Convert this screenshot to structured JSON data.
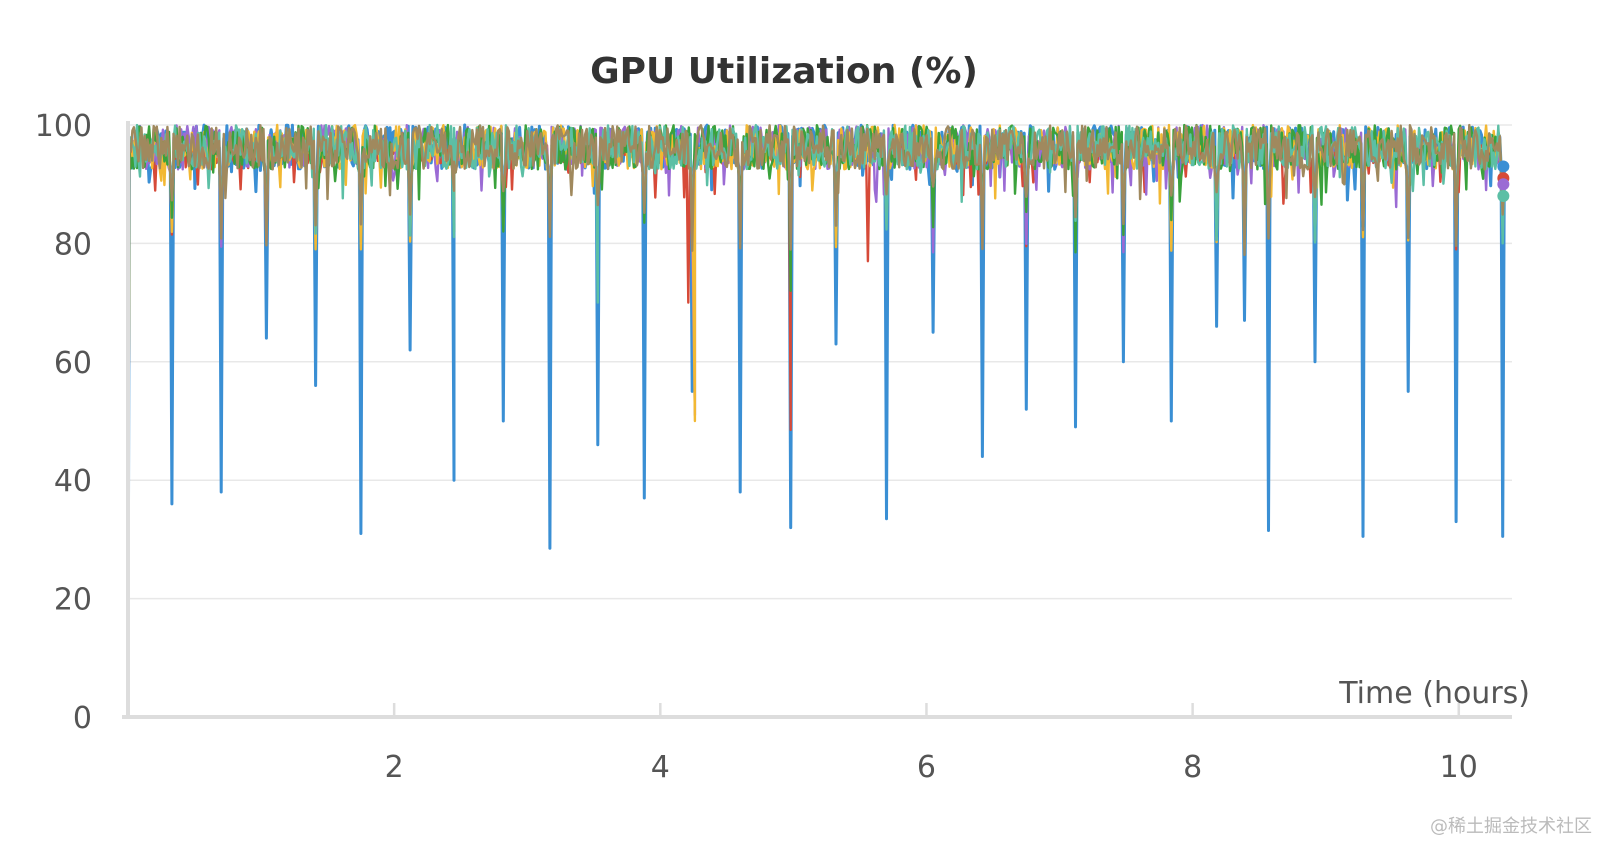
{
  "chart_data": {
    "type": "line",
    "title": "GPU Utilization (%)",
    "xlabel": "Time (hours)",
    "ylabel": "",
    "xlim": [
      0,
      10.4
    ],
    "ylim": [
      0,
      100
    ],
    "x_ticks": [
      "2",
      "4",
      "6",
      "8",
      "10"
    ],
    "y_ticks": [
      "0",
      "20",
      "40",
      "60",
      "80",
      "100"
    ],
    "grid": true,
    "baseline_band": [
      92,
      100
    ],
    "series": [
      {
        "color": "#3a8fd4",
        "dips": [
          {
            "x": 0.33,
            "y": 36
          },
          {
            "x": 0.7,
            "y": 38
          },
          {
            "x": 1.04,
            "y": 64
          },
          {
            "x": 1.41,
            "y": 56
          },
          {
            "x": 1.75,
            "y": 31
          },
          {
            "x": 2.12,
            "y": 62
          },
          {
            "x": 2.45,
            "y": 40
          },
          {
            "x": 2.82,
            "y": 50
          },
          {
            "x": 3.17,
            "y": 28.5
          },
          {
            "x": 3.53,
            "y": 46
          },
          {
            "x": 3.88,
            "y": 37
          },
          {
            "x": 4.24,
            "y": 55
          },
          {
            "x": 4.6,
            "y": 38
          },
          {
            "x": 4.98,
            "y": 32
          },
          {
            "x": 5.32,
            "y": 63
          },
          {
            "x": 5.7,
            "y": 33.5
          },
          {
            "x": 6.05,
            "y": 65
          },
          {
            "x": 6.42,
            "y": 44
          },
          {
            "x": 6.75,
            "y": 52
          },
          {
            "x": 7.12,
            "y": 49
          },
          {
            "x": 7.48,
            "y": 60
          },
          {
            "x": 7.84,
            "y": 50
          },
          {
            "x": 8.18,
            "y": 66
          },
          {
            "x": 8.39,
            "y": 67
          },
          {
            "x": 8.57,
            "y": 31.5
          },
          {
            "x": 8.92,
            "y": 60
          },
          {
            "x": 9.28,
            "y": 30.5
          },
          {
            "x": 9.62,
            "y": 55
          },
          {
            "x": 9.98,
            "y": 33
          },
          {
            "x": 10.33,
            "y": 30.5
          }
        ]
      },
      {
        "color": "#d64a38",
        "dips": [
          {
            "x": 4.21,
            "y": 70
          },
          {
            "x": 4.98,
            "y": 48.5
          },
          {
            "x": 5.56,
            "y": 77
          }
        ]
      },
      {
        "color": "#9b6bd4",
        "dips": [
          {
            "x": 4.26,
            "y": 51
          }
        ]
      },
      {
        "color": "#f2b833",
        "dips": [
          {
            "x": 4.26,
            "y": 50
          }
        ]
      },
      {
        "color": "#3aa23c",
        "dips": [
          {
            "x": 4.98,
            "y": 72
          }
        ]
      },
      {
        "color": "#5cbfa5",
        "dips": [
          {
            "x": 3.53,
            "y": 70
          }
        ]
      },
      {
        "color": "#a0895e",
        "dips": []
      }
    ],
    "end_points": [
      93,
      91,
      90,
      88
    ]
  },
  "watermark": "@稀土掘金技术社区"
}
